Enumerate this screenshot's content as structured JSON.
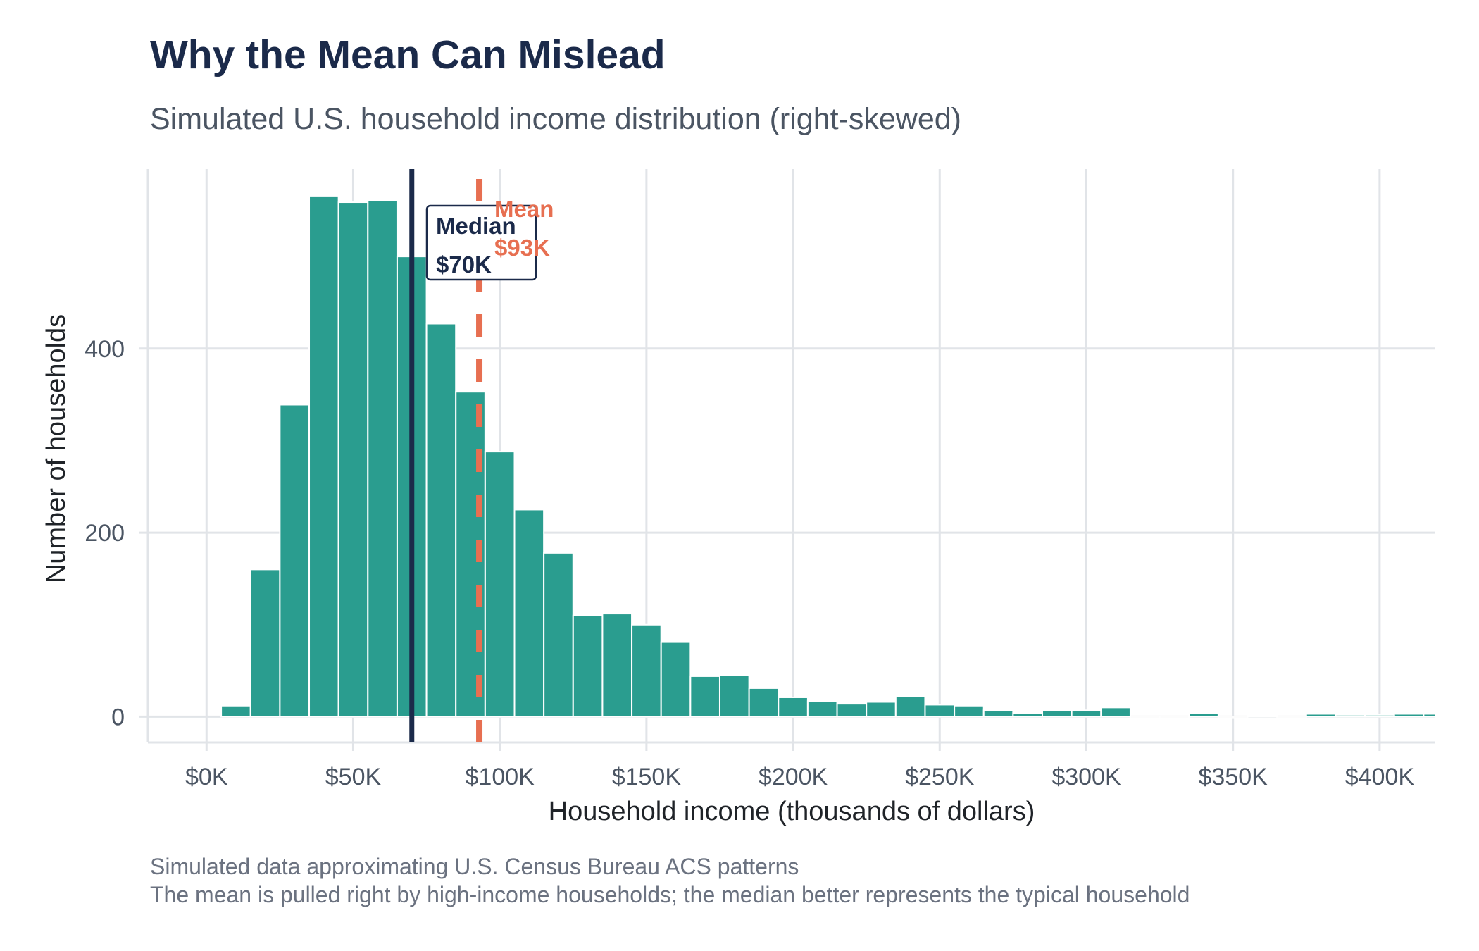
{
  "chart_data": {
    "type": "bar",
    "subtype": "histogram",
    "title": "Why the Mean Can Mislead",
    "subtitle": "Simulated U.S. household income distribution (right-skewed)",
    "xlabel": "Household income (thousands of dollars)",
    "ylabel": "Number of households",
    "caption": [
      "Simulated data approximating U.S. Census Bureau ACS patterns",
      "The mean is pulled right by high-income households; the median better represents the typical household"
    ],
    "bin_width": 10,
    "bin_centers": [
      10,
      20,
      30,
      40,
      50,
      60,
      70,
      80,
      90,
      100,
      110,
      120,
      130,
      140,
      150,
      160,
      170,
      180,
      190,
      200,
      210,
      220,
      230,
      240,
      250,
      260,
      270,
      280,
      290,
      300,
      310,
      320,
      330,
      340,
      350,
      360,
      370,
      380,
      390,
      400,
      410,
      420
    ],
    "values": [
      12,
      160,
      339,
      566,
      559,
      561,
      500,
      427,
      353,
      288,
      225,
      178,
      110,
      112,
      100,
      81,
      44,
      45,
      31,
      21,
      17,
      14,
      16,
      22,
      13,
      12,
      7,
      4,
      7,
      7,
      10,
      0,
      0,
      4,
      0,
      1,
      0,
      3,
      2,
      2,
      3,
      3
    ],
    "xlim": [
      -20,
      419
    ],
    "ylim": [
      -28,
      595
    ],
    "x_ticks": [
      0,
      50,
      100,
      150,
      200,
      250,
      300,
      350,
      400
    ],
    "x_tick_labels": [
      "$0K",
      "$50K",
      "$100K",
      "$150K",
      "$200K",
      "$250K",
      "$300K",
      "$350K",
      "$400K"
    ],
    "y_ticks": [
      0,
      200,
      400
    ],
    "y_tick_labels": [
      "0",
      "200",
      "400"
    ],
    "grid": true,
    "bar_color": "#2a9d8f",
    "reference_lines": [
      {
        "name": "median",
        "x": 70,
        "style": "solid",
        "color": "#1b2a4a",
        "label_lines": [
          "Median",
          "$70K"
        ],
        "boxed": true
      },
      {
        "name": "mean",
        "x": 93,
        "style": "dashed",
        "color": "#e76f51",
        "label_lines": [
          "Mean",
          "$93K"
        ],
        "boxed": false
      }
    ]
  }
}
